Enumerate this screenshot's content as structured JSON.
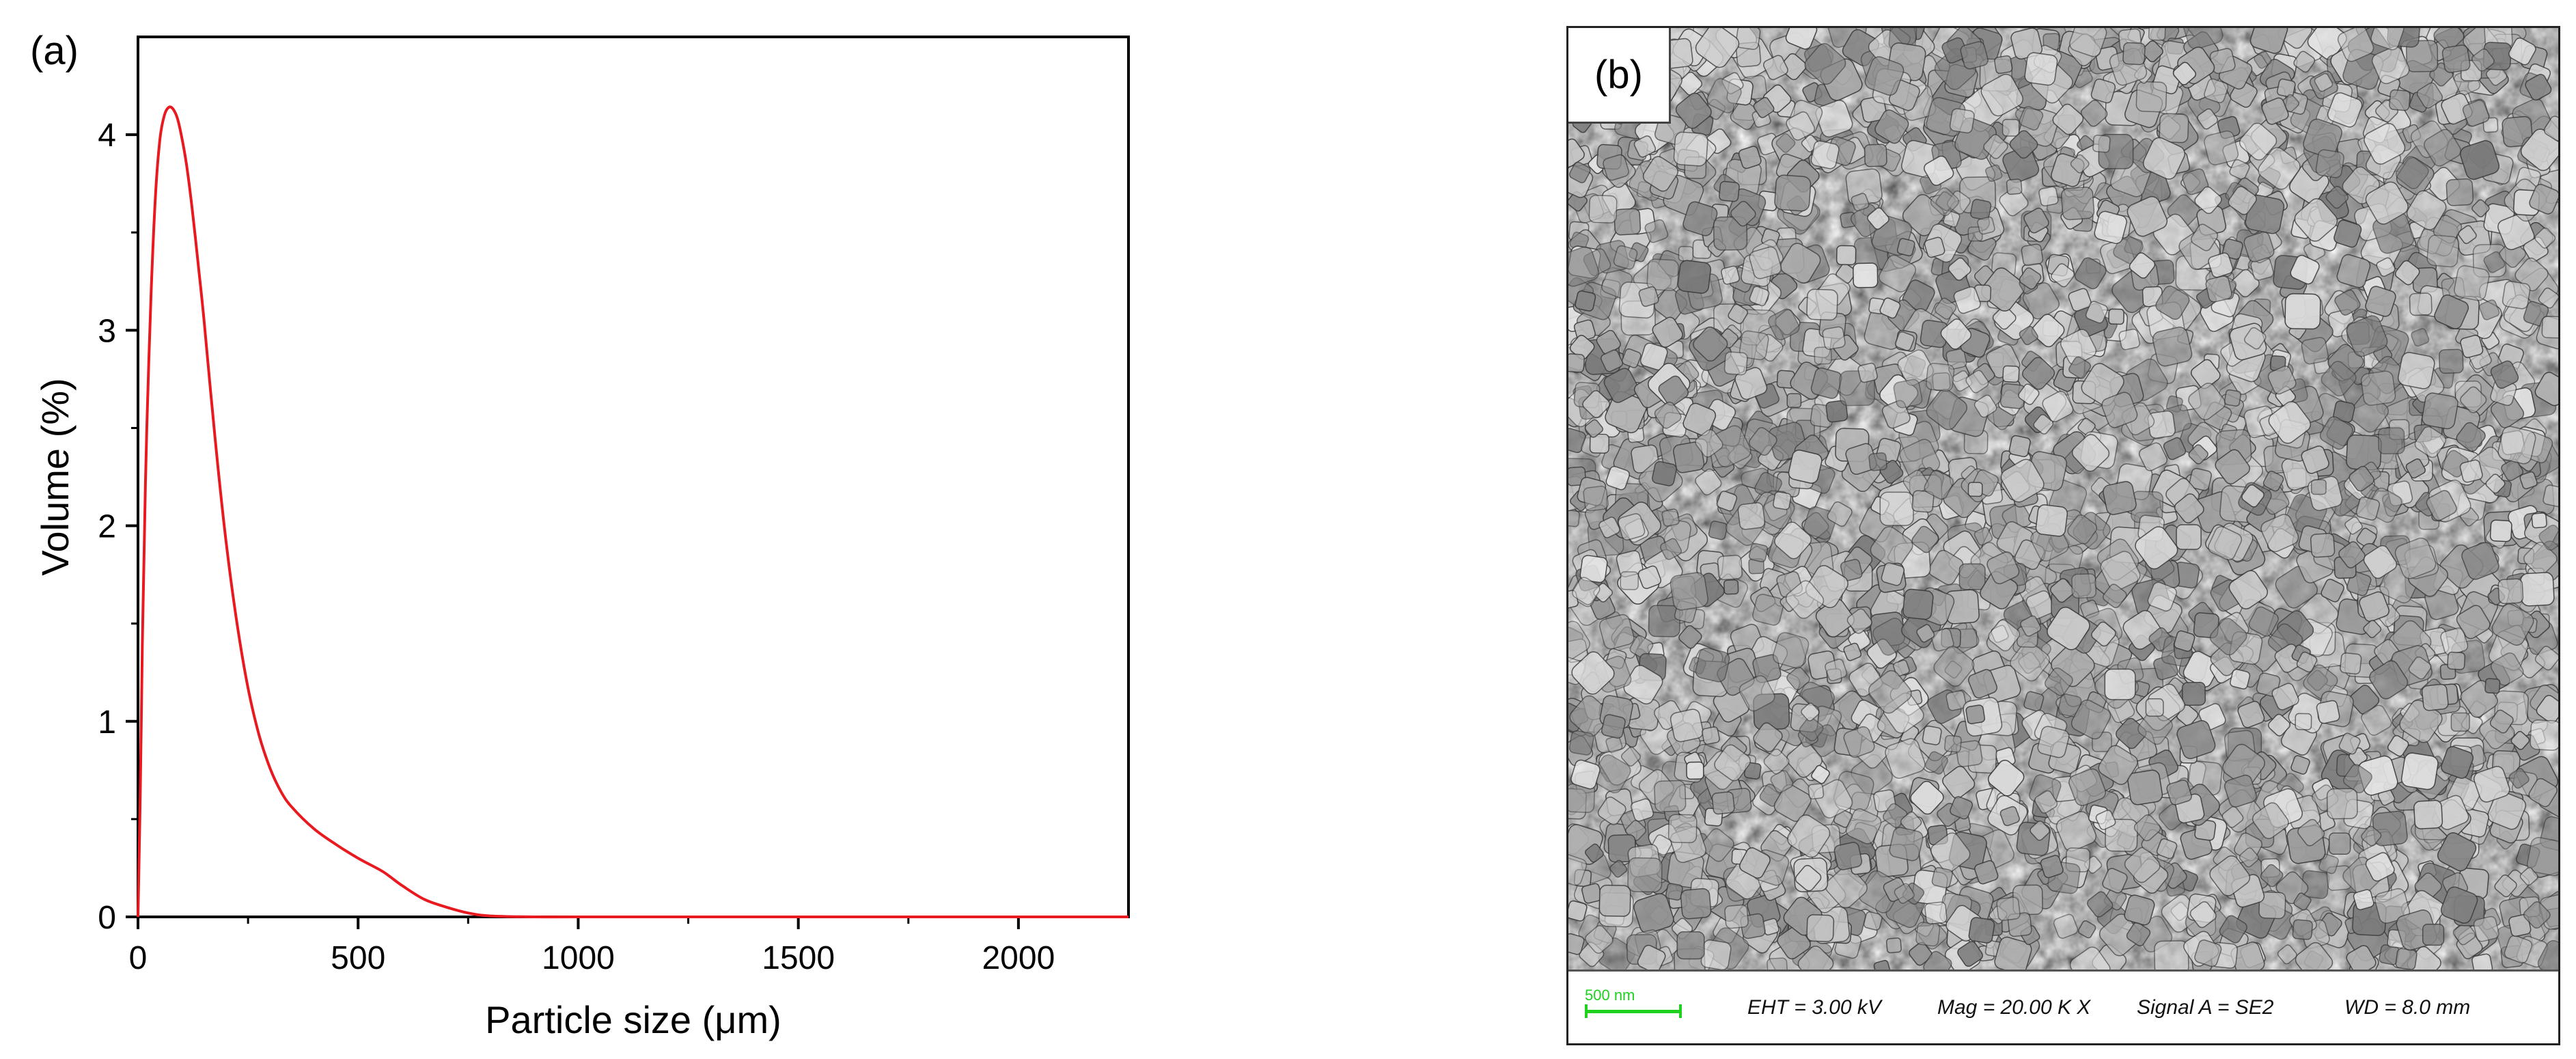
{
  "panel_a": {
    "label": "(a)"
  },
  "panel_b": {
    "label": "(b)",
    "databar": {
      "scale_label": "500 nm",
      "eht": "EHT =  3.00 kV",
      "mag": "Mag =  20.00 K X",
      "signal": "Signal A = SE2",
      "wd": "WD =  8.0 mm"
    }
  },
  "chart_data": {
    "type": "line",
    "title": "",
    "xlabel": "Particle size (μm)",
    "ylabel": "Volume (%)",
    "xlim": [
      0,
      2250
    ],
    "ylim": [
      0,
      4.5
    ],
    "xticks": [
      0,
      500,
      1000,
      1500,
      2000
    ],
    "yticks": [
      0,
      1,
      2,
      3,
      4
    ],
    "grid": false,
    "line_color": "#e8191f",
    "series": [
      {
        "name": "",
        "x": [
          0,
          5,
          10,
          15,
          20,
          30,
          40,
          50,
          60,
          70,
          80,
          90,
          100,
          110,
          120,
          130,
          140,
          150,
          175,
          200,
          225,
          250,
          275,
          300,
          325,
          350,
          400,
          450,
          500,
          550,
          570,
          600,
          650,
          700,
          750,
          800,
          900,
          1000,
          1200,
          1500,
          1800,
          2000,
          2250
        ],
        "y": [
          0,
          0.6,
          1.4,
          2.0,
          2.5,
          3.2,
          3.7,
          3.98,
          4.1,
          4.14,
          4.13,
          4.08,
          3.98,
          3.85,
          3.68,
          3.48,
          3.27,
          3.05,
          2.45,
          1.92,
          1.5,
          1.17,
          0.93,
          0.76,
          0.64,
          0.56,
          0.45,
          0.37,
          0.3,
          0.24,
          0.21,
          0.16,
          0.09,
          0.05,
          0.02,
          0.005,
          0,
          0,
          0,
          0,
          0,
          0,
          0
        ]
      }
    ]
  }
}
